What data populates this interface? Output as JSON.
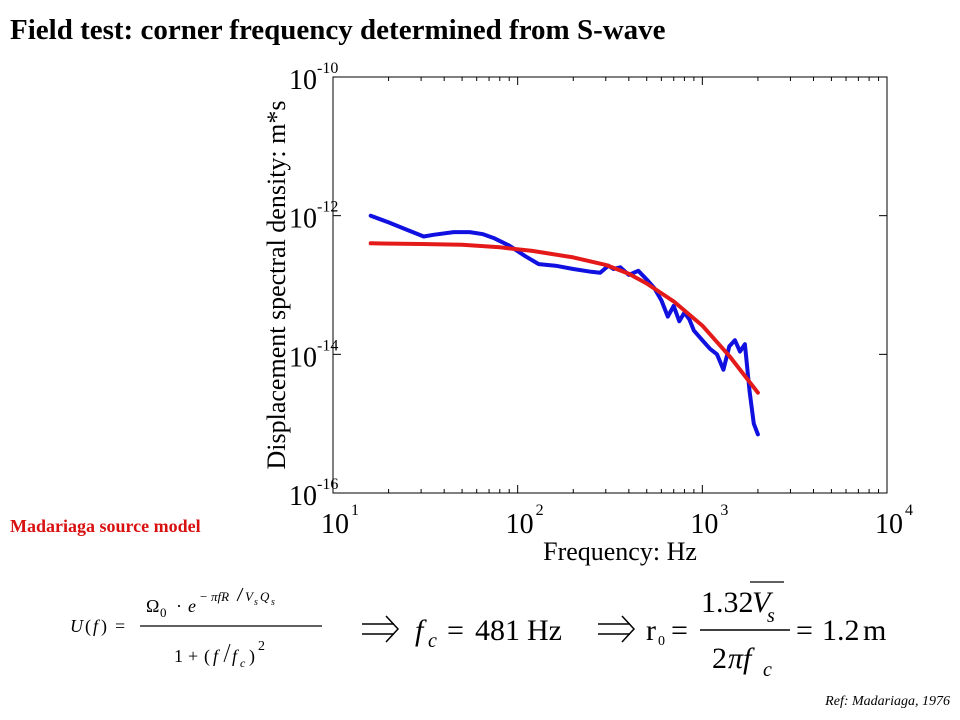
{
  "title": "Field test: corner frequency determined from S-wave",
  "model_label": "Madariaga source model",
  "reference": "Ref: Madariaga, 1976",
  "equations": {
    "fc_value": "481",
    "fc_unit": "Hz",
    "r0_coef": "1.32",
    "r0_value": "1.2",
    "r0_unit": "m"
  },
  "colors": {
    "observed": "#1010e0",
    "model": "#e41a1a",
    "label": "#d81010"
  },
  "chart_data": {
    "type": "line",
    "xlabel": "Frequency: Hz",
    "ylabel": "Displacement spectral density: m*s",
    "xscale": "log",
    "yscale": "log",
    "xlim": [
      10,
      10000
    ],
    "ylim": [
      1e-16,
      1e-10
    ],
    "xtick_exponents": [
      1,
      2,
      3,
      4
    ],
    "ytick_exponents": [
      -10,
      -12,
      -14,
      -16
    ],
    "grid": false,
    "series": [
      {
        "color": "#1010e0",
        "x": [
          16,
          20,
          25,
          31,
          35,
          45,
          55,
          65,
          75,
          90,
          110,
          130,
          160,
          200,
          250,
          280,
          310,
          330,
          360,
          400,
          450,
          500,
          550,
          600,
          650,
          700,
          750,
          800,
          850,
          900,
          1000,
          1100,
          1200,
          1300,
          1400,
          1500,
          1600,
          1700,
          1800,
          1900,
          2000
        ],
        "y": [
          1e-12,
          8e-13,
          6.3e-13,
          5e-13,
          5.3e-13,
          5.8e-13,
          5.8e-13,
          5.4e-13,
          4.7e-13,
          3.7e-13,
          2.6e-13,
          2e-13,
          1.9e-13,
          1.7e-13,
          1.55e-13,
          1.5e-13,
          1.9e-13,
          1.7e-13,
          1.8e-13,
          1.4e-13,
          1.6e-13,
          1.2e-13,
          9e-14,
          6e-14,
          3.5e-14,
          5e-14,
          3e-14,
          4e-14,
          3.2e-14,
          2.2e-14,
          1.6e-14,
          1.2e-14,
          1e-14,
          6e-15,
          1.3e-14,
          1.6e-14,
          1.1e-14,
          1.4e-14,
          3e-15,
          1e-15,
          7e-16
        ]
      },
      {
        "color": "#e41a1a",
        "x": [
          16,
          30,
          50,
          80,
          120,
          200,
          300,
          400,
          500,
          700,
          1000,
          1400,
          2000
        ],
        "y": [
          4e-13,
          3.9e-13,
          3.8e-13,
          3.5e-13,
          3.1e-13,
          2.5e-13,
          1.95e-13,
          1.45e-13,
          1.05e-13,
          5.8e-14,
          2.6e-14,
          9.5e-15,
          2.8e-15
        ]
      }
    ]
  }
}
